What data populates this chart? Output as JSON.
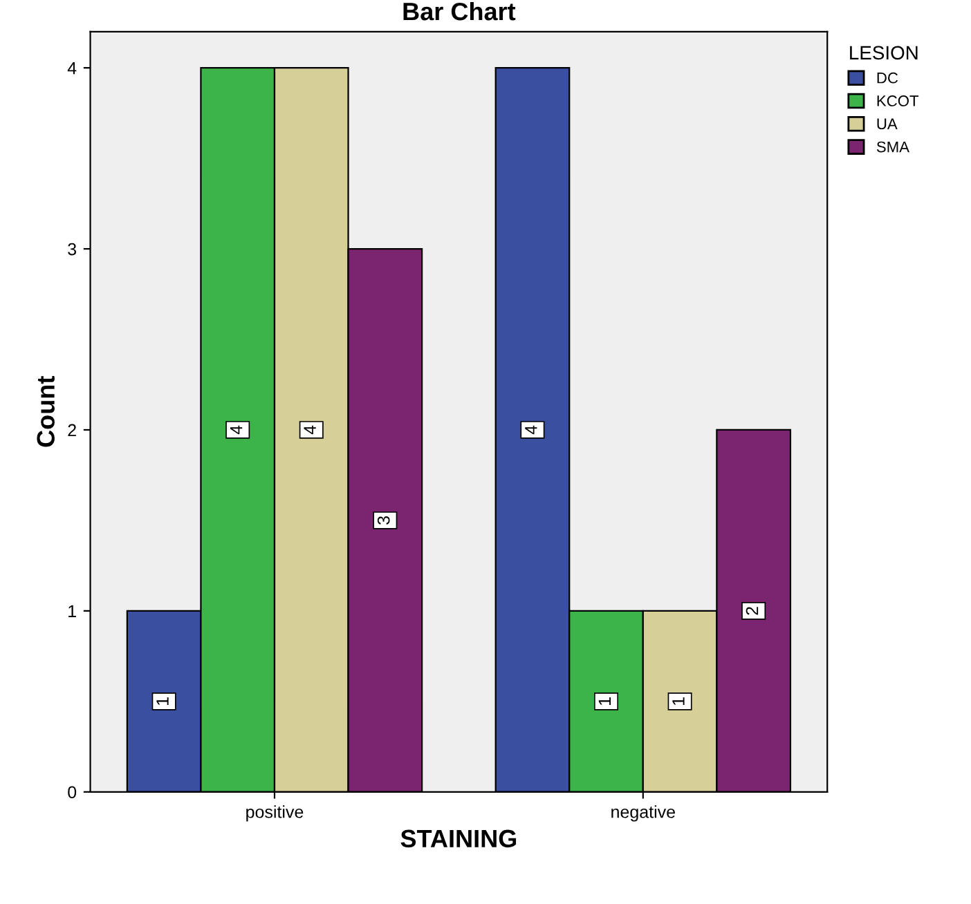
{
  "chart_data": {
    "type": "bar",
    "title": "Bar Chart",
    "xlabel": "STAINING",
    "ylabel": "Count",
    "legend_title": "LESION",
    "categories": [
      "positive",
      "negative"
    ],
    "series": [
      {
        "name": "DC",
        "color": "#3b4fa0",
        "values": [
          1,
          4
        ]
      },
      {
        "name": "KCOT",
        "color": "#3cb44a",
        "values": [
          4,
          1
        ]
      },
      {
        "name": "UA",
        "color": "#d6cf98",
        "values": [
          4,
          1
        ]
      },
      {
        "name": "SMA",
        "color": "#7b2470",
        "values": [
          3,
          2
        ]
      }
    ],
    "ylim": [
      0,
      4.2
    ],
    "yticks": [
      0,
      1,
      2,
      3,
      4
    ],
    "grid": false,
    "legend": "top right",
    "data_labels": true
  }
}
